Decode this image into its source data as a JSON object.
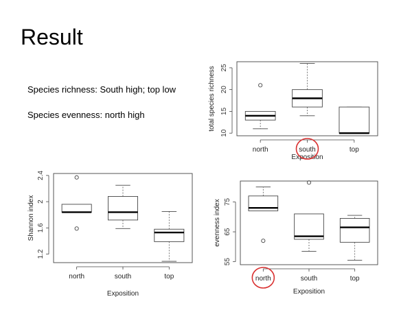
{
  "slide": {
    "title": "Result",
    "notes": [
      "Species richness: South high; top low",
      "Species evenness: north high"
    ]
  },
  "chart_data": [
    {
      "type": "boxplot",
      "xlabel": "Exposition",
      "ylabel": "total species richness",
      "ylim": [
        9.4,
        26.4
      ],
      "yticks": [
        10,
        15,
        20,
        25
      ],
      "categories": [
        "north",
        "south",
        "top"
      ],
      "boxes": [
        {
          "category": "north",
          "whisker_low": 11,
          "q1": 13,
          "median": 14,
          "q3": 15,
          "whisker_high": 15,
          "outliers": [
            21
          ]
        },
        {
          "category": "south",
          "whisker_low": 14,
          "q1": 16,
          "median": 18,
          "q3": 20,
          "whisker_high": 26,
          "outliers": []
        },
        {
          "category": "top",
          "whisker_low": 10,
          "q1": 10,
          "median": 10,
          "q3": 16,
          "whisker_high": 16,
          "outliers": []
        }
      ],
      "highlight": "south"
    },
    {
      "type": "boxplot",
      "xlabel": "Exposition",
      "ylabel": "Shannon index",
      "ylim": [
        1.07,
        2.43
      ],
      "yticks": [
        1.2,
        1.6,
        2.0,
        2.4
      ],
      "categories": [
        "north",
        "south",
        "top"
      ],
      "boxes": [
        {
          "category": "north",
          "whisker_low": 1.84,
          "q1": 1.84,
          "median": 1.84,
          "q3": 1.96,
          "whisker_high": 1.96,
          "outliers": [
            2.37,
            1.59
          ]
        },
        {
          "category": "south",
          "whisker_low": 1.59,
          "q1": 1.72,
          "median": 1.84,
          "q3": 2.08,
          "whisker_high": 2.25,
          "outliers": []
        },
        {
          "category": "top",
          "whisker_low": 1.09,
          "q1": 1.39,
          "median": 1.53,
          "q3": 1.58,
          "whisker_high": 1.85,
          "outliers": []
        }
      ],
      "highlight": null
    },
    {
      "type": "boxplot",
      "xlabel": "Exposition",
      "ylabel": "evenness index",
      "ylim": [
        54,
        82
      ],
      "yticks": [
        55,
        65,
        75
      ],
      "categories": [
        "north",
        "south",
        "top"
      ],
      "boxes": [
        {
          "category": "north",
          "whisker_low": 72,
          "q1": 72,
          "median": 73,
          "q3": 77,
          "whisker_high": 80,
          "outliers": [
            62
          ]
        },
        {
          "category": "south",
          "whisker_low": 58.5,
          "q1": 62.5,
          "median": 63.5,
          "q3": 71,
          "whisker_high": 71,
          "outliers": [
            81.5
          ]
        },
        {
          "category": "top",
          "whisker_low": 55.5,
          "q1": 61.5,
          "median": 66.5,
          "q3": 69.5,
          "whisker_high": 70.5,
          "outliers": []
        }
      ],
      "highlight": "north"
    }
  ]
}
